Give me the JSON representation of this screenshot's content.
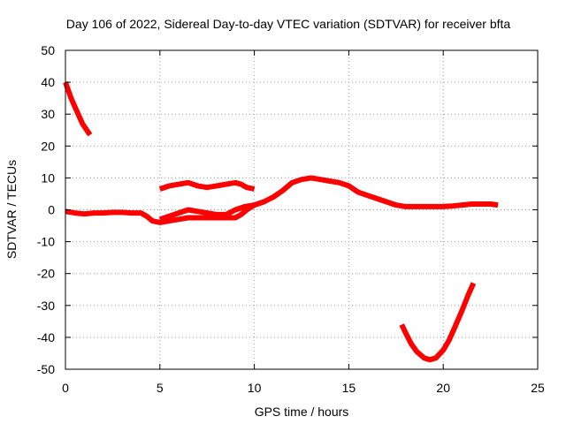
{
  "chart_data": {
    "type": "line",
    "title": "Day 106 of 2022, Sidereal Day-to-day VTEC variation (SDTVAR) for receiver bfta",
    "xlabel": "GPS time / hours",
    "ylabel": "SDTVAR / TECUs",
    "xlim": [
      0,
      25
    ],
    "ylim": [
      -50,
      50
    ],
    "xticks": [
      0,
      5,
      10,
      15,
      20,
      25
    ],
    "yticks": [
      -50,
      -40,
      -30,
      -20,
      -10,
      0,
      10,
      20,
      30,
      40,
      50
    ],
    "grid": true,
    "color": "#ff0000",
    "series": [
      {
        "name": "arc-1",
        "x": [
          0.0,
          0.3,
          0.6,
          0.9,
          1.3
        ],
        "y": [
          40,
          35,
          31,
          27,
          23.5
        ]
      },
      {
        "name": "arc-2",
        "x": [
          0.0,
          0.5,
          1.0,
          1.5,
          2.0,
          2.5,
          3.0,
          3.5,
          4.0,
          4.3,
          4.6,
          5.0,
          5.5,
          6.0,
          6.5,
          7.0,
          7.5,
          8.0,
          8.5,
          9.0,
          9.3,
          9.6,
          10.0,
          10.5,
          11.0,
          11.5,
          12.0,
          12.5,
          13.0,
          13.5,
          14.0,
          14.5,
          15.0,
          15.5,
          16.0,
          16.5,
          17.0,
          17.5,
          18.0,
          18.5,
          19.0,
          19.5,
          20.0,
          20.5,
          21.0,
          21.5,
          22.0,
          22.5,
          22.9
        ],
        "y": [
          -0.5,
          -1,
          -1.3,
          -1,
          -1,
          -0.8,
          -0.8,
          -1,
          -1,
          -2,
          -3.5,
          -4,
          -3.5,
          -3,
          -2.5,
          -2.5,
          -2.5,
          -2.5,
          -2.5,
          -2.5,
          -1.5,
          0,
          1.5,
          2.5,
          4,
          6,
          8.5,
          9.5,
          10,
          9.5,
          9,
          8.5,
          7.5,
          5.5,
          4.5,
          3.5,
          2.5,
          1.5,
          1,
          1,
          1,
          1,
          1,
          1.2,
          1.5,
          1.8,
          1.8,
          1.8,
          1.5
        ]
      },
      {
        "name": "arc-3",
        "x": [
          5.0,
          5.5,
          6.0,
          6.5,
          7.0,
          7.5,
          8.0,
          8.5,
          9.0,
          9.3,
          9.6,
          10.0
        ],
        "y": [
          6.5,
          7.5,
          8,
          8.5,
          7.5,
          7,
          7.5,
          8,
          8.5,
          8,
          7,
          6.5
        ]
      },
      {
        "name": "arc-4",
        "x": [
          5.0,
          5.5,
          6.0,
          6.5,
          7.0,
          7.5,
          8.0,
          8.5,
          9.0,
          9.5,
          10.0
        ],
        "y": [
          -3,
          -2,
          -1,
          0,
          -0.5,
          -1,
          -1.5,
          -1.5,
          0,
          1,
          1.5
        ]
      },
      {
        "name": "arc-5",
        "x": [
          17.8,
          18.0,
          18.3,
          18.6,
          19.0,
          19.3,
          19.6,
          20.0,
          20.3,
          20.6,
          21.0,
          21.3,
          21.6
        ],
        "y": [
          -36,
          -38.5,
          -42,
          -44.5,
          -46.5,
          -47,
          -46.5,
          -44,
          -41,
          -37,
          -31.5,
          -27,
          -23
        ]
      }
    ]
  }
}
